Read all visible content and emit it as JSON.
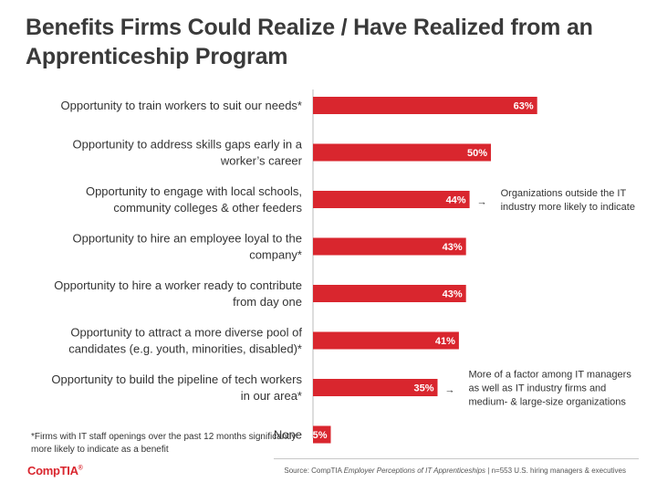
{
  "title": "Benefits Firms Could Realize / Have Realized from an Apprenticeship Program",
  "chart_data": {
    "type": "bar",
    "orientation": "horizontal",
    "title": "Benefits Firms Could Realize / Have Realized from an Apprenticeship Program",
    "unit": "%",
    "xlim": [
      0,
      100
    ],
    "grid": false,
    "categories": [
      [
        "Opportunity to train workers to suit our needs*"
      ],
      [
        "Opportunity to address skills gaps early in a",
        "worker’s career"
      ],
      [
        "Opportunity to engage with local schools,",
        "community colleges & other feeders"
      ],
      [
        "Opportunity to hire an employee loyal to the",
        "company*"
      ],
      [
        "Opportunity to hire a worker ready to contribute",
        "from day one"
      ],
      [
        "Opportunity to attract a more diverse pool of",
        "candidates (e.g. youth, minorities, disabled)*"
      ],
      [
        "Opportunity to build the pipeline of tech workers",
        "in our area*"
      ],
      [
        "None"
      ]
    ],
    "values": [
      63,
      50,
      44,
      43,
      43,
      41,
      35,
      5
    ],
    "value_labels": [
      "63%",
      "50%",
      "44%",
      "43%",
      "43%",
      "41%",
      "35%",
      "5%"
    ],
    "bar_color": "#d9262e",
    "annotations": [
      {
        "bar_index": 2,
        "arrow": "→",
        "lines": [
          "Organizations outside the IT",
          "industry more likely to indicate"
        ]
      },
      {
        "bar_index": 6,
        "arrow": "→",
        "lines": [
          "More of a factor among IT managers",
          "as well as IT industry firms and",
          "medium- & large-size organizations"
        ]
      }
    ]
  },
  "footnote": "*Firms with IT staff openings over the past 12 months significantly more likely to indicate as a benefit",
  "source": {
    "prefix": "Source: CompTIA ",
    "italic": "Employer Perceptions of IT Apprenticeships",
    "suffix": " | n=553 U.S. hiring managers & executives"
  },
  "logo": {
    "text": "CompTIA",
    "mark": "®"
  }
}
